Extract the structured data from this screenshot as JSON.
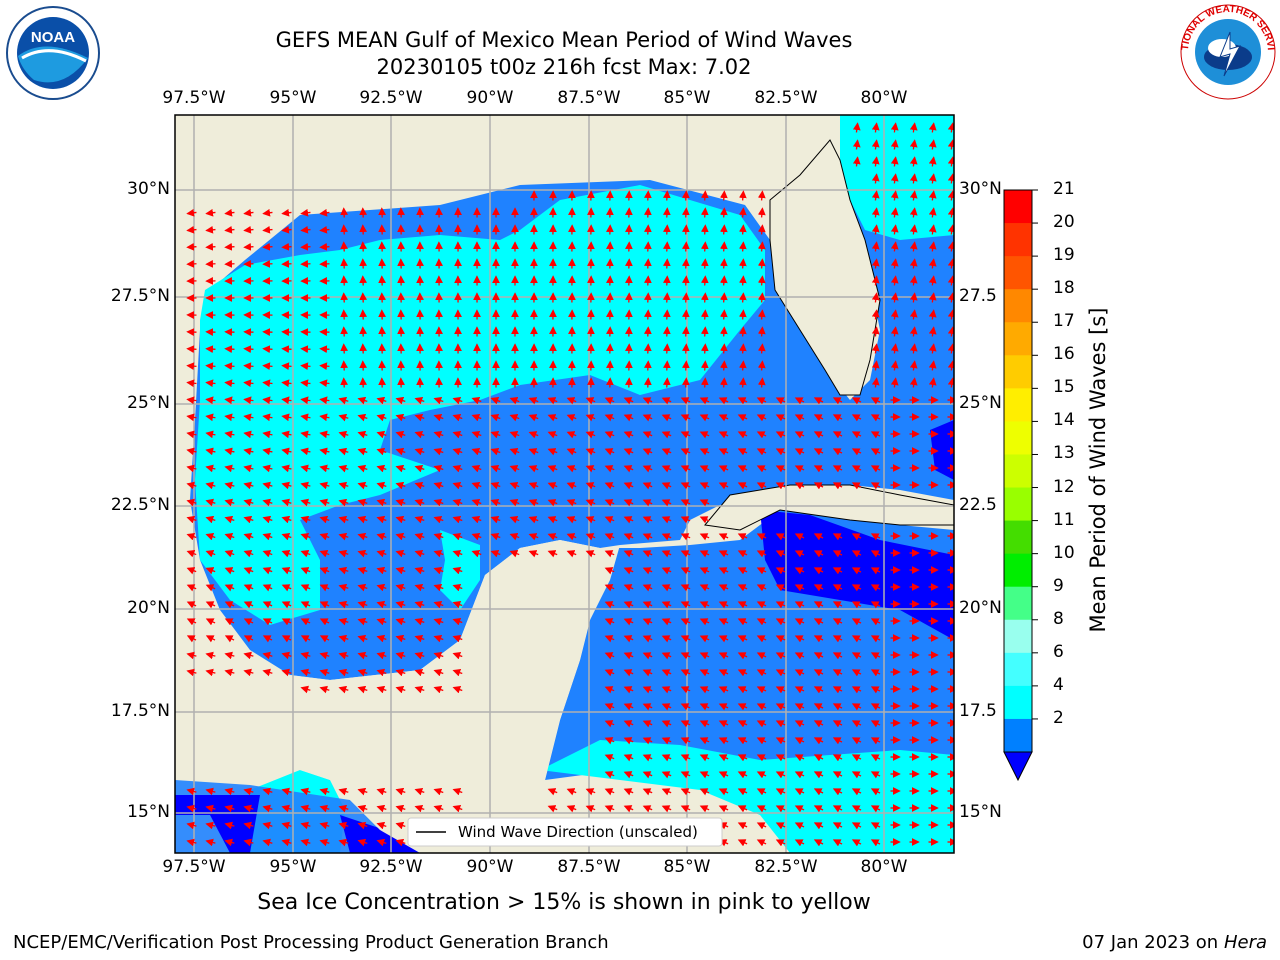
{
  "title_line1": "GEFS MEAN Gulf of Mexico Mean Period of Wind Waves",
  "title_line2": "20230105 t00z 216h fcst   Max: 7.02",
  "lon_labels": [
    "97.5°W",
    "95°W",
    "92.5°W",
    "90°W",
    "87.5°W",
    "85°W",
    "82.5°W",
    "80°W"
  ],
  "lat_labels": [
    "30°N",
    "27.5°N",
    "25°N",
    "22.5°N",
    "20°N",
    "17.5°N",
    "15°N"
  ],
  "lat_labels_right": [
    "30°N",
    "27.5",
    "25°N",
    "22.5",
    "20°N",
    "17.5",
    "15°N"
  ],
  "legend_label": "Wind Wave Direction (unscaled)",
  "colorbar": {
    "label": "Mean Period of Wind Waves [s]",
    "ticks": [
      "21",
      "20",
      "19",
      "18",
      "17",
      "16",
      "15",
      "14",
      "13",
      "12",
      "11",
      "10",
      "9",
      "8",
      "6",
      "4",
      "2"
    ],
    "colors": [
      "#ff0000",
      "#ff3300",
      "#ff5500",
      "#ff8800",
      "#ffaa00",
      "#ffcc00",
      "#ffee00",
      "#eeff00",
      "#ccff00",
      "#99ff00",
      "#44dd00",
      "#00ee00",
      "#44ff88",
      "#99ffee",
      "#44ffff",
      "#00ffff",
      "#0080ff"
    ],
    "under_color": "#0000ff"
  },
  "ice_note": "Sea Ice Concentration > 15% is shown in pink to yellow",
  "footer_left": "NCEP/EMC/Verification Post Processing Product Generation Branch",
  "footer_date": "07 Jan 2023 on ",
  "footer_host": "Hera",
  "logos": {
    "left": "NOAA",
    "right": "NATIONAL WEATHER SERVICE"
  },
  "colors": {
    "land": "#efedda",
    "light_wave": "#00ffff",
    "mid_wave": "#1f82ff",
    "dark_wave": "#0000ff",
    "arrow": "#ff0000",
    "grid": "#b0b0b0"
  }
}
